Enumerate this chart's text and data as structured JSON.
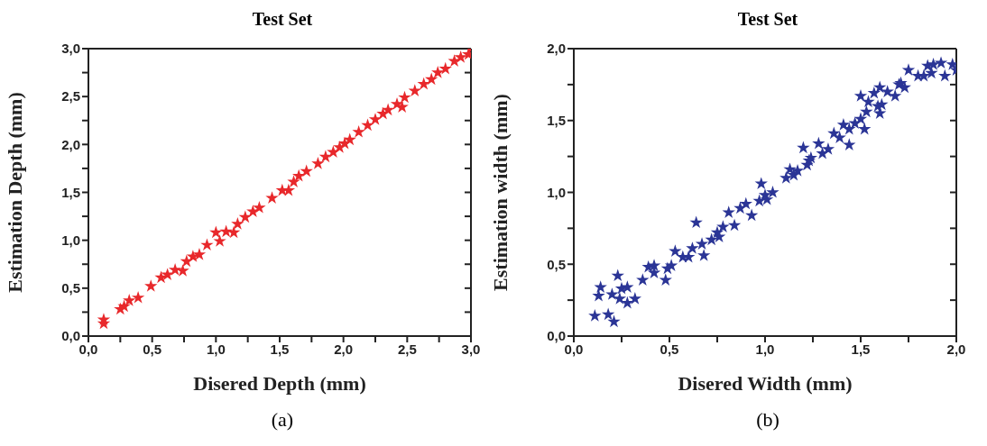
{
  "chart_data": [
    {
      "type": "scatter",
      "title": "Test Set",
      "xlabel": "Disered Depth (mm)",
      "ylabel": "Estimation Depth (mm)",
      "marker": "star",
      "annotations": [
        "(a)"
      ],
      "xlim": [
        0,
        3
      ],
      "ylim": [
        0,
        3
      ],
      "xticks": [
        {
          "value": 0,
          "label": "0,0"
        },
        {
          "value": 0.25,
          "label": null
        },
        {
          "value": 0.5,
          "label": "0,5"
        },
        {
          "value": 0.75,
          "label": null
        },
        {
          "value": 1,
          "label": "1,0"
        },
        {
          "value": 1.25,
          "label": null
        },
        {
          "value": 1.5,
          "label": "1,5"
        },
        {
          "value": 1.75,
          "label": null
        },
        {
          "value": 2,
          "label": "2,0"
        },
        {
          "value": 2.25,
          "label": null
        },
        {
          "value": 2.5,
          "label": "2,5"
        },
        {
          "value": 2.75,
          "label": null
        },
        {
          "value": 3,
          "label": "3,0"
        }
      ],
      "yticks": [
        {
          "value": 0,
          "label": "0,0"
        },
        {
          "value": 0.25,
          "label": null
        },
        {
          "value": 0.5,
          "label": "0,5"
        },
        {
          "value": 0.75,
          "label": null
        },
        {
          "value": 1,
          "label": "1,0"
        },
        {
          "value": 1.25,
          "label": null
        },
        {
          "value": 1.5,
          "label": "1,5"
        },
        {
          "value": 1.75,
          "label": null
        },
        {
          "value": 2,
          "label": "2,0"
        },
        {
          "value": 2.25,
          "label": null
        },
        {
          "value": 2.5,
          "label": "2,5"
        },
        {
          "value": 2.75,
          "label": null
        },
        {
          "value": 3,
          "label": "3,0"
        }
      ],
      "series": [
        {
          "color": "#e8282b",
          "x": [
            0.12,
            0.12,
            0.25,
            0.28,
            0.32,
            0.39,
            0.49,
            0.57,
            0.62,
            0.68,
            0.74,
            0.77,
            0.82,
            0.87,
            0.93,
            1.0,
            1.03,
            1.08,
            1.14,
            1.17,
            1.23,
            1.29,
            1.34,
            1.44,
            1.52,
            1.57,
            1.61,
            1.65,
            1.71,
            1.8,
            1.86,
            1.92,
            1.97,
            2.01,
            2.05,
            2.12,
            2.19,
            2.25,
            2.31,
            2.35,
            2.42,
            2.46,
            2.48,
            2.56,
            2.63,
            2.69,
            2.74,
            2.8,
            2.87,
            2.92,
            2.98,
            3.0
          ],
          "values": [
            0.13,
            0.17,
            0.28,
            0.31,
            0.37,
            0.4,
            0.52,
            0.61,
            0.64,
            0.69,
            0.68,
            0.78,
            0.83,
            0.85,
            0.95,
            1.08,
            0.99,
            1.09,
            1.08,
            1.17,
            1.24,
            1.3,
            1.34,
            1.44,
            1.52,
            1.52,
            1.61,
            1.67,
            1.72,
            1.8,
            1.87,
            1.92,
            1.97,
            2.01,
            2.05,
            2.13,
            2.2,
            2.26,
            2.32,
            2.36,
            2.42,
            2.39,
            2.49,
            2.56,
            2.63,
            2.68,
            2.75,
            2.79,
            2.87,
            2.91,
            2.94,
            3.0
          ]
        }
      ]
    },
    {
      "type": "scatter",
      "title": "Test Set",
      "xlabel": "Disered Width (mm)",
      "ylabel": "Estimation width (mm)",
      "marker": "star",
      "annotations": [
        "(b)"
      ],
      "xlim": [
        0,
        2
      ],
      "ylim": [
        0,
        2
      ],
      "xticks": [
        {
          "value": 0,
          "label": "0,0"
        },
        {
          "value": 0.25,
          "label": null
        },
        {
          "value": 0.5,
          "label": "0,5"
        },
        {
          "value": 0.75,
          "label": null
        },
        {
          "value": 1,
          "label": "1,0"
        },
        {
          "value": 1.25,
          "label": null
        },
        {
          "value": 1.5,
          "label": "1,5"
        },
        {
          "value": 1.75,
          "label": null
        },
        {
          "value": 2,
          "label": "2,0"
        }
      ],
      "yticks": [
        {
          "value": 0,
          "label": "0,0"
        },
        {
          "value": 0.25,
          "label": null
        },
        {
          "value": 0.5,
          "label": "0,5"
        },
        {
          "value": 0.75,
          "label": null
        },
        {
          "value": 1,
          "label": "1,0"
        },
        {
          "value": 1.25,
          "label": null
        },
        {
          "value": 1.5,
          "label": "1,5"
        },
        {
          "value": 1.75,
          "label": null
        },
        {
          "value": 2,
          "label": "2,0"
        }
      ],
      "series": [
        {
          "color": "#2b3596",
          "x": [
            0.11,
            0.18,
            0.21,
            0.13,
            0.14,
            0.2,
            0.23,
            0.25,
            0.24,
            0.28,
            0.28,
            0.32,
            0.36,
            0.39,
            0.42,
            0.42,
            0.48,
            0.49,
            0.51,
            0.53,
            0.57,
            0.6,
            0.62,
            0.64,
            0.67,
            0.68,
            0.72,
            0.75,
            0.76,
            0.78,
            0.81,
            0.84,
            0.87,
            0.9,
            0.93,
            0.97,
            0.98,
            1.0,
            1.01,
            1.04,
            1.11,
            1.13,
            1.15,
            1.17,
            1.2,
            1.22,
            1.23,
            1.24,
            1.28,
            1.3,
            1.33,
            1.36,
            1.39,
            1.41,
            1.44,
            1.44,
            1.47,
            1.5,
            1.5,
            1.52,
            1.53,
            1.54,
            1.57,
            1.59,
            1.6,
            1.6,
            1.61,
            1.64,
            1.68,
            1.7,
            1.71,
            1.73,
            1.75,
            1.8,
            1.83,
            1.85,
            1.87,
            1.88,
            1.92,
            1.94,
            1.98,
            2.0
          ],
          "values": [
            0.14,
            0.15,
            0.1,
            0.28,
            0.34,
            0.29,
            0.42,
            0.33,
            0.26,
            0.34,
            0.23,
            0.26,
            0.39,
            0.48,
            0.49,
            0.44,
            0.39,
            0.47,
            0.49,
            0.59,
            0.55,
            0.55,
            0.61,
            0.79,
            0.64,
            0.56,
            0.67,
            0.72,
            0.69,
            0.76,
            0.86,
            0.77,
            0.89,
            0.92,
            0.84,
            0.94,
            1.06,
            0.98,
            0.95,
            1.0,
            1.1,
            1.16,
            1.12,
            1.15,
            1.31,
            1.19,
            1.22,
            1.24,
            1.34,
            1.27,
            1.3,
            1.41,
            1.38,
            1.47,
            1.44,
            1.33,
            1.48,
            1.51,
            1.67,
            1.44,
            1.56,
            1.63,
            1.69,
            1.6,
            1.55,
            1.73,
            1.61,
            1.7,
            1.67,
            1.75,
            1.76,
            1.73,
            1.85,
            1.81,
            1.81,
            1.88,
            1.83,
            1.89,
            1.9,
            1.81,
            1.89,
            1.85
          ]
        }
      ]
    }
  ]
}
